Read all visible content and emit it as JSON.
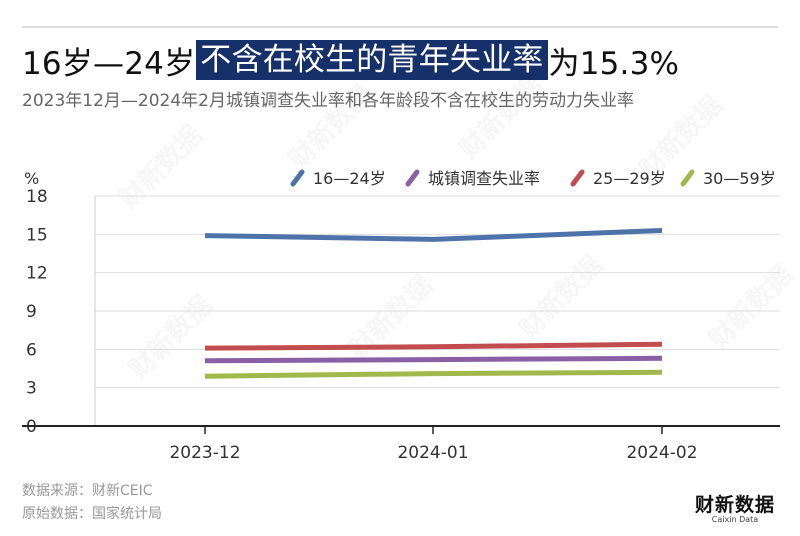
{
  "title": {
    "before": "16岁—24岁",
    "highlight": "不含在校生的青年失业率",
    "after": "为15.3%"
  },
  "subtitle": "2023年12月—2024年2月城镇调查失业率和各年龄段不含在校生的劳动力失业率",
  "footer": {
    "source": "数据来源：财新CEIC",
    "original": "原始数据：国家统计局"
  },
  "logo": {
    "cn": "财新数据",
    "en": "Caixin Data"
  },
  "watermark": "财新数据",
  "chart_data": {
    "type": "line",
    "x": [
      "2023-12",
      "2024-01",
      "2024-02"
    ],
    "ylabel": "%",
    "ylim": [
      0,
      18
    ],
    "yticks": [
      0,
      3,
      6,
      9,
      12,
      15,
      18
    ],
    "grid": true,
    "legend_position": "top",
    "series": [
      {
        "name": "16—24岁",
        "color": "#4e73aa",
        "values": [
          14.9,
          14.6,
          15.3
        ]
      },
      {
        "name": "城镇调查失业率",
        "color": "#8a5fa5",
        "values": [
          5.1,
          5.2,
          5.3
        ]
      },
      {
        "name": "25—29岁",
        "color": "#c24c4e",
        "values": [
          6.1,
          6.2,
          6.4
        ]
      },
      {
        "name": "30—59岁",
        "color": "#a1b84c",
        "values": [
          3.9,
          4.1,
          4.2
        ]
      }
    ]
  }
}
